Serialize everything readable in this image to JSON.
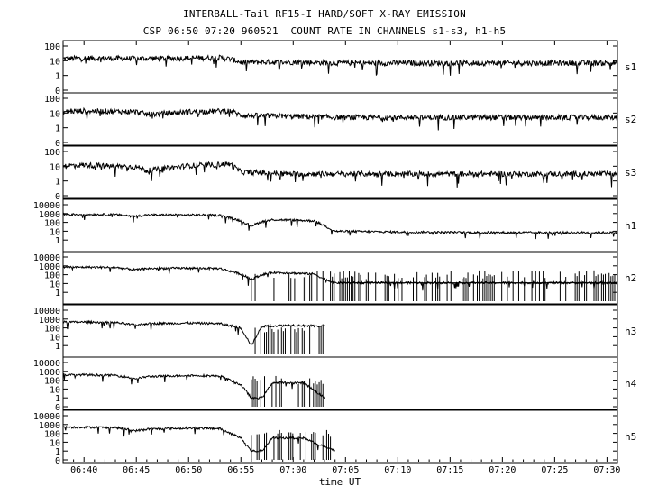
{
  "chart_data": {
    "type": "line",
    "title": "INTERBALL-Tail RF15-I HARD/SOFT X-RAY EMISSION",
    "subtitle": "CSP 06:50 07:20 960521  COUNT RATE IN CHANNELS s1-s3, h1-h5",
    "xlabel": "time UT",
    "xlim": [
      "06:38",
      "07:31"
    ],
    "x_ticks": [
      "06:40",
      "06:45",
      "06:50",
      "06:55",
      "07:00",
      "07:05",
      "07:10",
      "07:15",
      "07:20",
      "07:25",
      "07:30"
    ],
    "y_scale": "log",
    "grid": false,
    "panels": [
      {
        "name": "s1",
        "ylim": [
          0,
          100
        ],
        "y_ticks": [
          "100",
          "10",
          "1",
          "0"
        ],
        "series": [
          {
            "x": [
              "06:38",
              "06:40",
              "06:45",
              "06:50",
              "06:53",
              "06:54",
              "06:55",
              "07:00",
              "07:05",
              "07:10",
              "07:20",
              "07:31"
            ],
            "y": [
              14,
              15,
              14,
              15,
              16,
              13,
              8,
              8,
              7,
              7,
              7,
              7
            ]
          }
        ]
      },
      {
        "name": "s2",
        "ylim": [
          0,
          100
        ],
        "y_ticks": [
          "100",
          "10",
          "1",
          "0"
        ],
        "series": [
          {
            "x": [
              "06:38",
              "06:40",
              "06:45",
              "06:46",
              "06:50",
              "06:54",
              "06:55",
              "07:00",
              "07:05",
              "07:10",
              "07:20",
              "07:31"
            ],
            "y": [
              12,
              14,
              12,
              8,
              12,
              14,
              7,
              6,
              5,
              5,
              5,
              5
            ]
          }
        ]
      },
      {
        "name": "s3",
        "ylim": [
          0,
          100
        ],
        "y_ticks": [
          "100",
          "10",
          "1",
          "0"
        ],
        "series": [
          {
            "x": [
              "06:38",
              "06:40",
              "06:45",
              "06:46",
              "06:50",
              "06:54",
              "06:55",
              "07:00",
              "07:05",
              "07:10",
              "07:20",
              "07:31"
            ],
            "y": [
              11,
              12,
              9,
              5,
              11,
              14,
              4,
              3,
              3,
              3,
              3,
              3
            ]
          }
        ]
      },
      {
        "name": "h1",
        "ylim": [
          0,
          10000
        ],
        "y_ticks": [
          "10000",
          "1000",
          "100",
          "10",
          "1"
        ],
        "series": [
          {
            "x": [
              "06:38",
              "06:40",
              "06:43",
              "06:45",
              "06:46",
              "06:50",
              "06:53",
              "06:55",
              "06:56",
              "06:57",
              "06:58",
              "07:00",
              "07:02",
              "07:03",
              "07:04",
              "07:10",
              "07:20",
              "07:31"
            ],
            "y": [
              800,
              800,
              750,
              500,
              700,
              700,
              650,
              150,
              40,
              120,
              200,
              180,
              150,
              40,
              10,
              8,
              7,
              7
            ]
          }
        ]
      },
      {
        "name": "h2",
        "ylim": [
          0,
          10000
        ],
        "y_ticks": [
          "10000",
          "1000",
          "100",
          "10",
          "1"
        ],
        "series": [
          {
            "x": [
              "06:38",
              "06:40",
              "06:43",
              "06:45",
              "06:46",
              "06:50",
              "06:53",
              "06:55",
              "06:56",
              "06:57",
              "06:58",
              "07:00",
              "07:02",
              "07:03",
              "07:04",
              "07:10",
              "07:20",
              "07:31"
            ],
            "y": [
              700,
              700,
              650,
              350,
              500,
              550,
              500,
              120,
              30,
              100,
              180,
              150,
              120,
              30,
              12,
              12,
              12,
              12
            ]
          }
        ]
      },
      {
        "name": "h3",
        "ylim": [
          0,
          10000
        ],
        "y_ticks": [
          "10000",
          "1000",
          "100",
          "10",
          "1"
        ],
        "series": [
          {
            "x": [
              "06:38",
              "06:40",
              "06:43",
              "06:45",
              "06:46",
              "06:50",
              "06:53",
              "06:55",
              "06:56",
              "06:57",
              "07:00",
              "07:03"
            ],
            "y": [
              450,
              450,
              400,
              200,
              300,
              350,
              300,
              100,
              1,
              150,
              200,
              150
            ]
          }
        ]
      },
      {
        "name": "h4",
        "ylim": [
          0,
          10000
        ],
        "y_ticks": [
          "10000",
          "1000",
          "100",
          "10",
          "1",
          "0"
        ],
        "series": [
          {
            "x": [
              "06:38",
              "06:40",
              "06:43",
              "06:45",
              "06:46",
              "06:50",
              "06:53",
              "06:55",
              "06:56",
              "06:57",
              "06:58",
              "06:59",
              "07:01",
              "07:03"
            ],
            "y": [
              400,
              400,
              350,
              150,
              250,
              350,
              300,
              30,
              1,
              1,
              50,
              50,
              50,
              1
            ]
          }
        ]
      },
      {
        "name": "h5",
        "ylim": [
          0,
          10000
        ],
        "y_ticks": [
          "10000",
          "1000",
          "100",
          "10",
          "1",
          "0"
        ],
        "series": [
          {
            "x": [
              "06:38",
              "06:40",
              "06:43",
              "06:45",
              "06:46",
              "06:50",
              "06:53",
              "06:55",
              "06:56",
              "06:57",
              "06:58",
              "07:00",
              "07:01",
              "07:04"
            ],
            "y": [
              500,
              500,
              450,
              200,
              300,
              400,
              350,
              30,
              1,
              1,
              30,
              30,
              30,
              1
            ]
          }
        ]
      }
    ]
  }
}
